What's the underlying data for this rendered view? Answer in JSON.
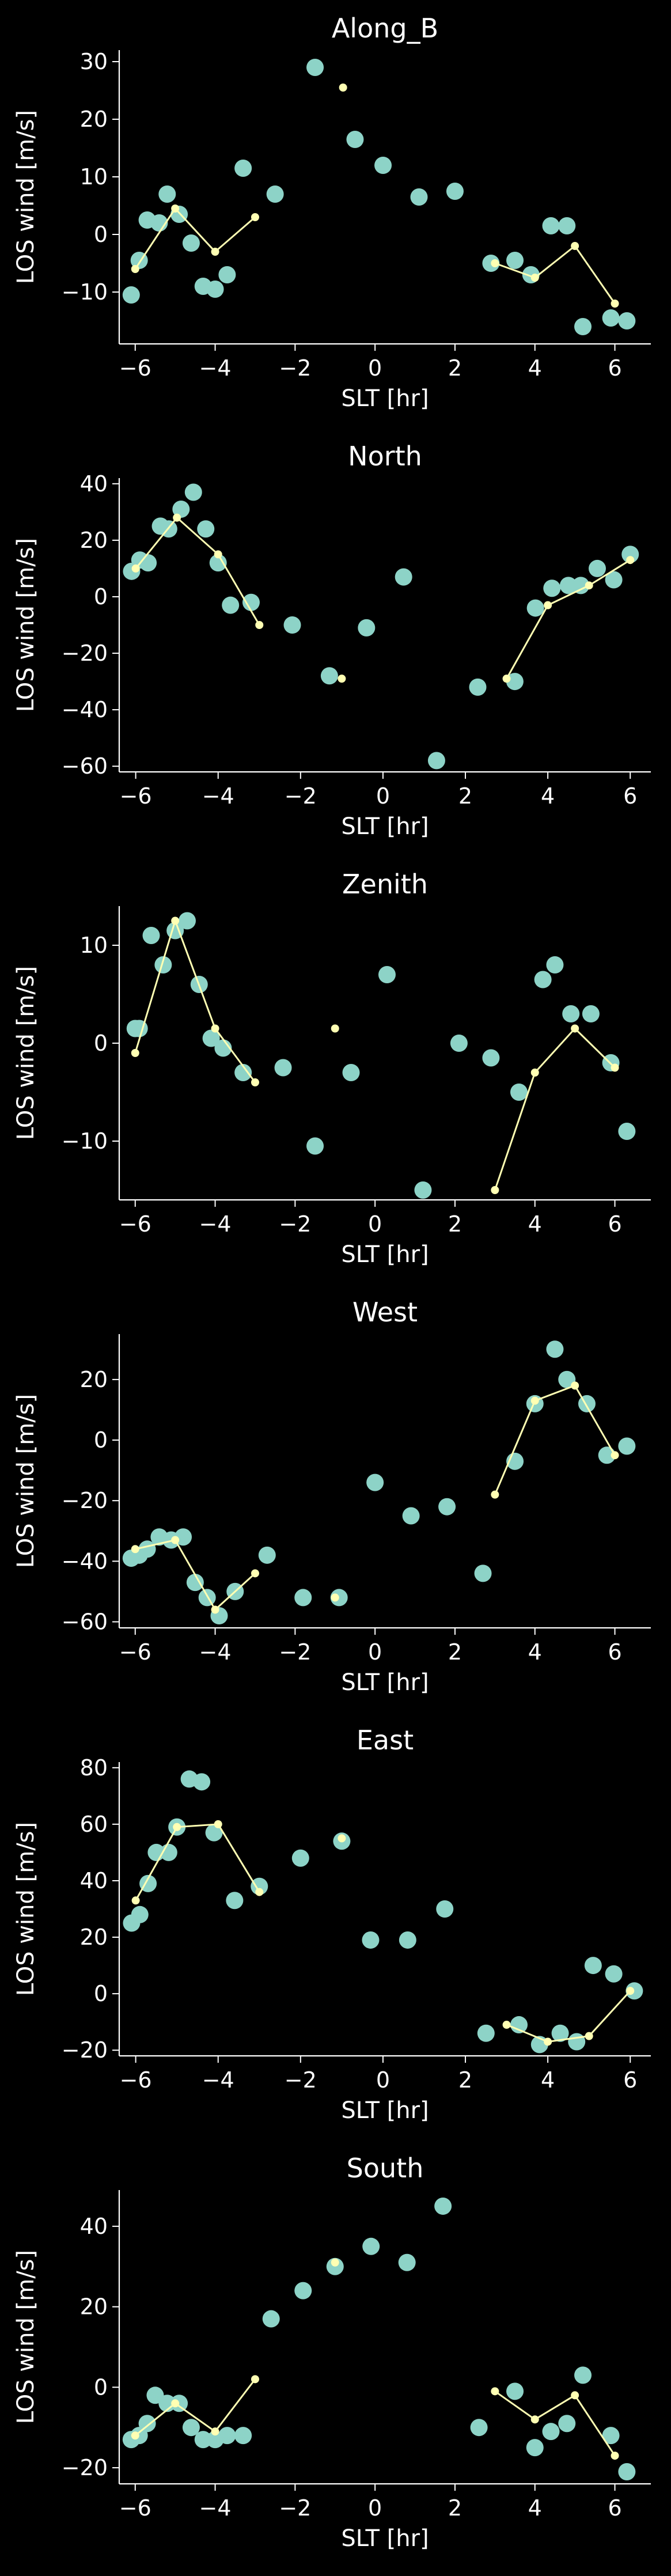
{
  "figure": {
    "background": "#000000",
    "text_color": "#ffffff"
  },
  "style": {
    "marker_color": "#8dd3c7",
    "line_color": "#ffffb3"
  },
  "chart_data": [
    {
      "type": "scatter",
      "title": "Along_B",
      "xlabel": "SLT [hr]",
      "ylabel": "LOS wind [m/s]",
      "xlim": [
        -6.4,
        6.9
      ],
      "ylim": [
        -19,
        32
      ],
      "xticks": [
        -6,
        -4,
        -2,
        0,
        2,
        4,
        6
      ],
      "yticks": [
        -10,
        0,
        10,
        20,
        30
      ],
      "grid": false,
      "scatter": {
        "x": [
          -6.1,
          -5.9,
          -5.7,
          -5.4,
          -5.2,
          -4.9,
          -4.6,
          -4.3,
          -4.0,
          -3.7,
          -3.3,
          -2.5,
          -1.5,
          -0.5,
          0.2,
          1.1,
          2.0,
          2.9,
          3.5,
          3.9,
          4.4,
          4.8,
          5.2,
          5.9,
          6.3
        ],
        "y": [
          -10.5,
          -4.5,
          2.5,
          2,
          7,
          3.5,
          -1.5,
          -9,
          -9.5,
          -7,
          11.5,
          7,
          29,
          16.5,
          12,
          6.5,
          7.5,
          -5,
          -4.5,
          -7,
          1.5,
          1.5,
          -16,
          -14.5,
          -15
        ]
      },
      "line_segments": [
        {
          "x": [
            -6.0,
            -5.0,
            -4.0,
            -3.0
          ],
          "y": [
            -6,
            4.5,
            -3,
            3
          ]
        },
        {
          "x": [
            -0.8
          ],
          "y": [
            25.5
          ]
        },
        {
          "x": [
            3.0,
            4.0,
            5.0,
            6.0
          ],
          "y": [
            -5,
            -7.5,
            -2,
            -12
          ]
        }
      ]
    },
    {
      "type": "scatter",
      "title": "North",
      "xlabel": "SLT [hr]",
      "ylabel": "LOS wind [m/s]",
      "xlim": [
        -6.4,
        6.5
      ],
      "ylim": [
        -62,
        42
      ],
      "xticks": [
        -6,
        -4,
        -2,
        0,
        2,
        4,
        6
      ],
      "yticks": [
        -60,
        -40,
        -20,
        0,
        20,
        40
      ],
      "grid": false,
      "scatter": {
        "x": [
          -6.1,
          -5.9,
          -5.7,
          -5.4,
          -5.2,
          -4.9,
          -4.6,
          -4.3,
          -4.0,
          -3.7,
          -3.2,
          -2.2,
          -1.3,
          -0.4,
          0.5,
          1.3,
          2.3,
          3.2,
          3.7,
          4.1,
          4.5,
          4.8,
          5.2,
          5.6,
          6.0
        ],
        "y": [
          9,
          13,
          12,
          25,
          24,
          31,
          37,
          24,
          12,
          -3,
          -2,
          -10,
          -28,
          -11,
          7,
          -58,
          -32,
          -30,
          -4,
          3,
          4,
          4,
          10,
          6,
          15
        ]
      },
      "line_segments": [
        {
          "x": [
            -6.0,
            -5.0,
            -4.0,
            -3.0
          ],
          "y": [
            10,
            28,
            15,
            -10
          ]
        },
        {
          "x": [
            -1.0
          ],
          "y": [
            -29
          ]
        },
        {
          "x": [
            3.0,
            4.0,
            5.0,
            6.0
          ],
          "y": [
            -29,
            -3,
            4,
            13
          ]
        }
      ]
    },
    {
      "type": "scatter",
      "title": "Zenith",
      "xlabel": "SLT [hr]",
      "ylabel": "LOS wind [m/s]",
      "xlim": [
        -6.4,
        6.9
      ],
      "ylim": [
        -16,
        14
      ],
      "xticks": [
        -6,
        -4,
        -2,
        0,
        2,
        4,
        6
      ],
      "yticks": [
        -10,
        0,
        10
      ],
      "grid": false,
      "scatter": {
        "x": [
          -6.0,
          -5.9,
          -5.6,
          -5.3,
          -5.0,
          -4.7,
          -4.4,
          -4.1,
          -3.8,
          -3.3,
          -2.3,
          -1.5,
          -0.6,
          0.3,
          1.2,
          2.1,
          2.9,
          3.6,
          4.2,
          4.5,
          4.9,
          5.4,
          5.9,
          6.3
        ],
        "y": [
          1.5,
          1.5,
          11,
          8,
          11.5,
          12.5,
          6,
          0.5,
          -0.5,
          -3,
          -2.5,
          -10.5,
          -3,
          7,
          -15,
          0,
          -1.5,
          -5,
          6.5,
          8,
          3,
          3,
          -2,
          -9
        ]
      },
      "line_segments": [
        {
          "x": [
            -6.0,
            -5.0,
            -4.0,
            -3.0
          ],
          "y": [
            -1,
            12.5,
            1.5,
            -4
          ]
        },
        {
          "x": [
            -1.0
          ],
          "y": [
            1.5
          ]
        },
        {
          "x": [
            3.0,
            4.0,
            5.0,
            6.0
          ],
          "y": [
            -15,
            -3,
            1.5,
            -2.5
          ]
        }
      ]
    },
    {
      "type": "scatter",
      "title": "West",
      "xlabel": "SLT [hr]",
      "ylabel": "LOS wind [m/s]",
      "xlim": [
        -6.4,
        6.9
      ],
      "ylim": [
        -62,
        35
      ],
      "xticks": [
        -6,
        -4,
        -2,
        0,
        2,
        4,
        6
      ],
      "yticks": [
        -60,
        -40,
        -20,
        0,
        20
      ],
      "grid": false,
      "scatter": {
        "x": [
          -6.1,
          -5.9,
          -5.7,
          -5.4,
          -5.1,
          -4.8,
          -4.5,
          -4.2,
          -3.9,
          -3.5,
          -2.7,
          -1.8,
          -0.9,
          0.0,
          0.9,
          1.8,
          2.7,
          3.5,
          4.0,
          4.5,
          4.8,
          5.3,
          5.8,
          6.3
        ],
        "y": [
          -39,
          -38,
          -36,
          -32,
          -33,
          -32,
          -47,
          -52,
          -58,
          -50,
          -38,
          -52,
          -52,
          -14,
          -25,
          -22,
          -44,
          -7,
          12,
          30,
          20,
          12,
          -5,
          -2
        ]
      },
      "line_segments": [
        {
          "x": [
            -6.0,
            -5.0,
            -4.0,
            -3.0
          ],
          "y": [
            -36,
            -33,
            -56,
            -44
          ]
        },
        {
          "x": [
            -1.0
          ],
          "y": [
            -52
          ]
        },
        {
          "x": [
            3.0,
            4.0,
            5.0,
            6.0
          ],
          "y": [
            -18,
            13,
            18,
            -5
          ]
        }
      ]
    },
    {
      "type": "scatter",
      "title": "East",
      "xlabel": "SLT [hr]",
      "ylabel": "LOS wind [m/s]",
      "xlim": [
        -6.4,
        6.5
      ],
      "ylim": [
        -22,
        82
      ],
      "xticks": [
        -6,
        -4,
        -2,
        0,
        2,
        4,
        6
      ],
      "yticks": [
        -20,
        0,
        20,
        40,
        60,
        80
      ],
      "grid": false,
      "scatter": {
        "x": [
          -6.1,
          -5.9,
          -5.7,
          -5.5,
          -5.2,
          -5.0,
          -4.7,
          -4.4,
          -4.1,
          -3.6,
          -3.0,
          -2.0,
          -1.0,
          -0.3,
          0.6,
          1.5,
          2.5,
          3.3,
          3.8,
          4.3,
          4.7,
          5.1,
          5.6,
          6.1
        ],
        "y": [
          25,
          28,
          39,
          50,
          50,
          59,
          76,
          75,
          57,
          33,
          38,
          48,
          54,
          19,
          19,
          30,
          -14,
          -11,
          -18,
          -14,
          -17,
          10,
          7,
          1
        ]
      },
      "line_segments": [
        {
          "x": [
            -6.0,
            -5.0,
            -4.0,
            -3.0
          ],
          "y": [
            33,
            59,
            60,
            36
          ]
        },
        {
          "x": [
            -1.0
          ],
          "y": [
            55
          ]
        },
        {
          "x": [
            3.0,
            4.0,
            5.0,
            6.0
          ],
          "y": [
            -11,
            -17,
            -15,
            1
          ]
        }
      ]
    },
    {
      "type": "scatter",
      "title": "South",
      "xlabel": "SLT [hr]",
      "ylabel": "LOS wind [m/s]",
      "xlim": [
        -6.4,
        6.9
      ],
      "ylim": [
        -24,
        49
      ],
      "xticks": [
        -6,
        -4,
        -2,
        0,
        2,
        4,
        6
      ],
      "yticks": [
        -20,
        0,
        20,
        40
      ],
      "grid": false,
      "scatter": {
        "x": [
          -6.1,
          -5.9,
          -5.7,
          -5.5,
          -5.2,
          -4.9,
          -4.6,
          -4.3,
          -4.0,
          -3.7,
          -3.3,
          -2.6,
          -1.8,
          -1.0,
          -0.1,
          0.8,
          1.7,
          2.6,
          3.5,
          4.0,
          4.4,
          4.8,
          5.2,
          5.9,
          6.3
        ],
        "y": [
          -13,
          -12,
          -9,
          -2,
          -4,
          -4,
          -10,
          -13,
          -13,
          -12,
          -12,
          17,
          24,
          30,
          35,
          31,
          45,
          -10,
          -1,
          -15,
          -11,
          -9,
          3,
          -12,
          -21
        ]
      },
      "line_segments": [
        {
          "x": [
            -6.0,
            -5.0,
            -4.0,
            -3.0
          ],
          "y": [
            -12,
            -4,
            -11,
            2
          ]
        },
        {
          "x": [
            -1.0
          ],
          "y": [
            31
          ]
        },
        {
          "x": [
            3.0,
            4.0,
            5.0,
            6.0
          ],
          "y": [
            -1,
            -8,
            -2,
            -17
          ]
        }
      ]
    }
  ]
}
